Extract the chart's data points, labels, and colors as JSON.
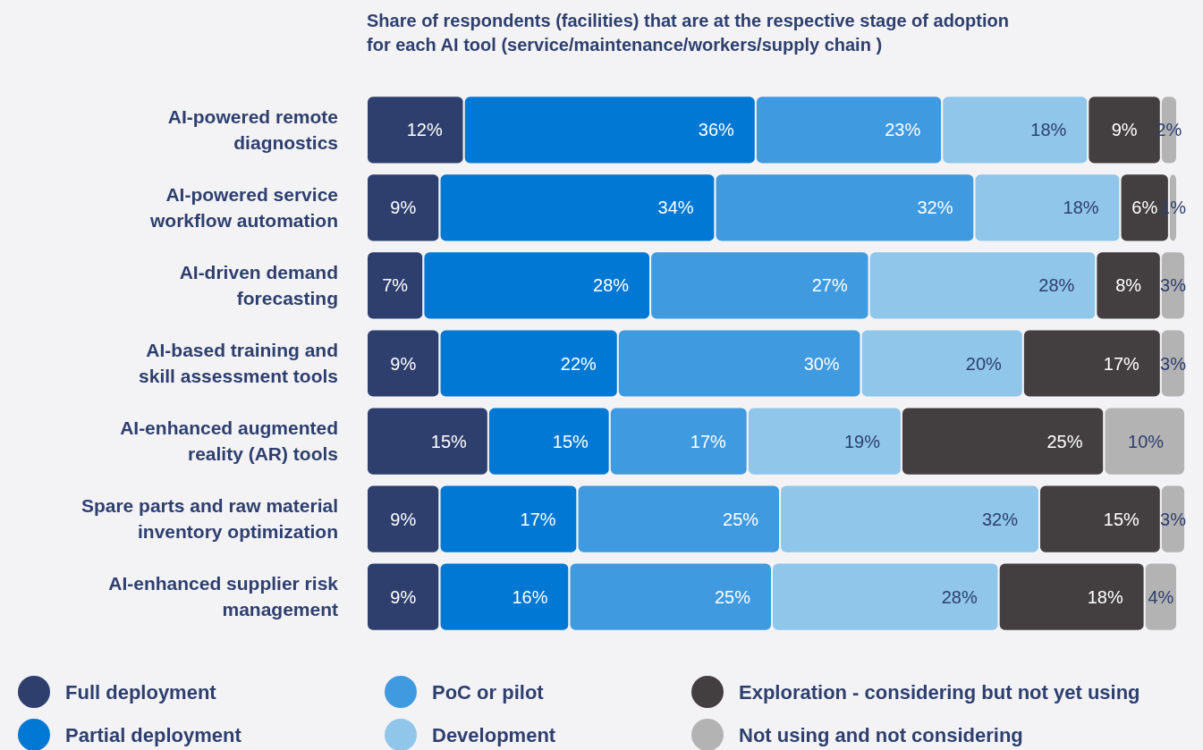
{
  "chart_data": {
    "type": "bar",
    "orientation": "horizontal",
    "stacked": true,
    "legend": "bottom",
    "title": "Share of respondents (facilities) that are at the respective stage of adoption\nfor each AI tool (service/maintenance/workers/supply chain )",
    "categories": [
      "AI-powered remote\ndiagnostics",
      "AI-powered service\nworkflow automation",
      "AI-driven demand\nforecasting",
      "AI-based training and\nskill assessment tools",
      "AI-enhanced augmented\nreality (AR) tools",
      "Spare parts and raw material\ninventory optimization",
      "AI-enhanced supplier risk\nmanagement"
    ],
    "series": [
      {
        "name": "Full deployment",
        "color": "#2e3f6e",
        "values": [
          12,
          9,
          7,
          9,
          15,
          9,
          9
        ],
        "value_labels": [
          "12%",
          "9%",
          "7%",
          "9%",
          "15%",
          "9%",
          "9%"
        ]
      },
      {
        "name": "Partial deployment",
        "color": "#0078d4",
        "values": [
          36,
          34,
          28,
          22,
          15,
          17,
          16
        ],
        "value_labels": [
          "36%",
          "34%",
          "28%",
          "22%",
          "15%",
          "17%",
          "16%"
        ]
      },
      {
        "name": "PoC or pilot",
        "color": "#3f9ae0",
        "values": [
          23,
          32,
          27,
          30,
          17,
          25,
          25
        ],
        "value_labels": [
          "23%",
          "32%",
          "27%",
          "30%",
          "17%",
          "25%",
          "25%"
        ]
      },
      {
        "name": "Development",
        "color": "#8fc6ea",
        "values": [
          18,
          18,
          28,
          20,
          19,
          32,
          28
        ],
        "value_labels": [
          "18%",
          "18%",
          "28%",
          "20%",
          "19%",
          "32%",
          "28%"
        ]
      },
      {
        "name": "Exploration - considering but not yet using",
        "color": "#433f41",
        "values": [
          9,
          6,
          8,
          17,
          25,
          15,
          18
        ],
        "value_labels": [
          "9%",
          "6%",
          "8%",
          "17%",
          "25%",
          "15%",
          "18%"
        ]
      },
      {
        "name": "Not using and not considering",
        "color": "#b3b3b3",
        "values": [
          2,
          1,
          3,
          3,
          10,
          3,
          4
        ],
        "value_labels": [
          "2%",
          "1%",
          "3%",
          "3%",
          "10%",
          "3%",
          "4%"
        ]
      }
    ]
  }
}
